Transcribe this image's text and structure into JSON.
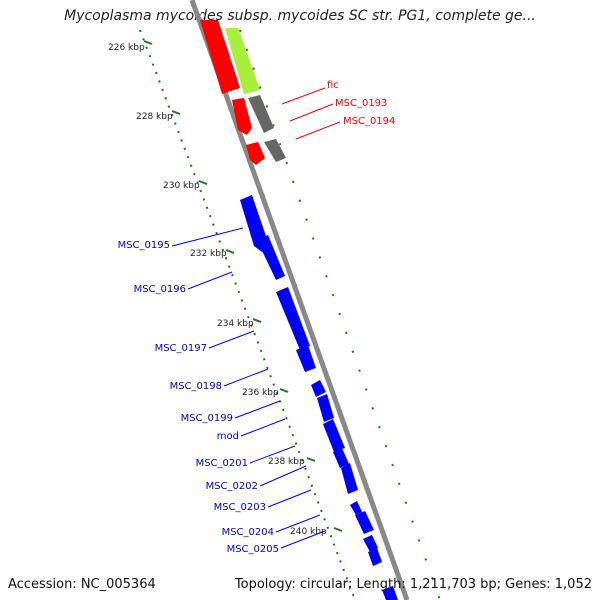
{
  "title": "Mycoplasma mycoides subsp. mycoides SC str. PG1, complete ge...",
  "footer": {
    "accession": "Accession: NC_005364",
    "summary": "Topology: circular; Length: 1,211,703 bp; Genes: 1,052"
  },
  "colors": {
    "backbone": "#888888",
    "tick": "#1a7a1a",
    "gene_red": "#ff0000",
    "gene_gray": "#666666",
    "gene_green": "#a6f03a",
    "gene_blue": "#0000ff"
  },
  "scale_labels": [
    "226 kbp",
    "228 kbp",
    "230 kbp",
    "232 kbp",
    "234 kbp",
    "236 kbp",
    "238 kbp",
    "240 kbp"
  ],
  "genes_right": [
    {
      "name": "fic",
      "color": "red"
    },
    {
      "name": "MSC_0193",
      "color": "red"
    },
    {
      "name": "MSC_0194",
      "color": "red"
    }
  ],
  "genes_left": [
    {
      "name": "MSC_0195",
      "color": "blue"
    },
    {
      "name": "MSC_0196",
      "color": "blue"
    },
    {
      "name": "MSC_0197",
      "color": "blue"
    },
    {
      "name": "MSC_0198",
      "color": "blue"
    },
    {
      "name": "MSC_0199",
      "color": "blue"
    },
    {
      "name": "mod",
      "color": "blue"
    },
    {
      "name": "MSC_0201",
      "color": "blue"
    },
    {
      "name": "MSC_0202",
      "color": "blue"
    },
    {
      "name": "MSC_0203",
      "color": "blue"
    },
    {
      "name": "MSC_0204",
      "color": "blue"
    },
    {
      "name": "MSC_0205",
      "color": "blue"
    }
  ]
}
